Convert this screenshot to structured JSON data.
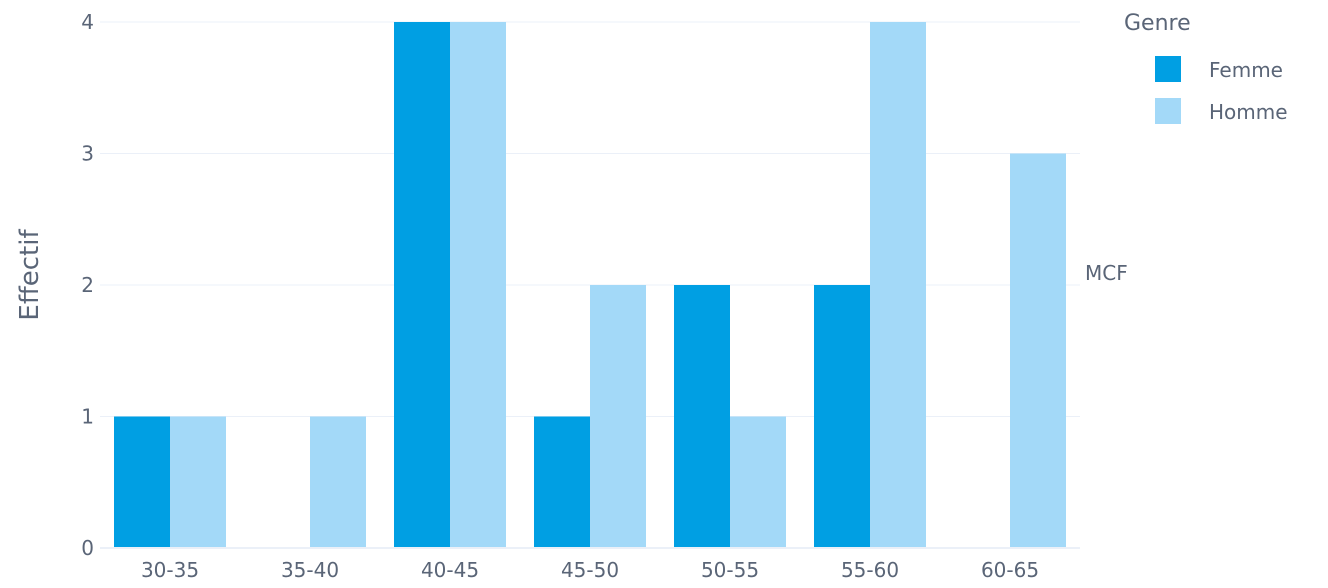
{
  "chart_data": {
    "type": "bar",
    "categories": [
      "30-35",
      "35-40",
      "40-45",
      "45-50",
      "50-55",
      "55-60",
      "60-65"
    ],
    "series": [
      {
        "name": "Femme",
        "values": [
          1,
          0,
          4,
          1,
          2,
          2,
          0
        ],
        "color": "#009fe3"
      },
      {
        "name": "Homme",
        "values": [
          1,
          1,
          4,
          2,
          1,
          4,
          3
        ],
        "color": "#a3d9f8"
      }
    ],
    "title": "",
    "xlabel": "",
    "ylabel": "Effectif",
    "ylim": [
      0,
      4
    ],
    "yticks": [
      0,
      1,
      2,
      3,
      4
    ],
    "grid": true,
    "legend": {
      "title": "Genre",
      "placement": "top-right"
    },
    "facet_label": "MCF"
  }
}
